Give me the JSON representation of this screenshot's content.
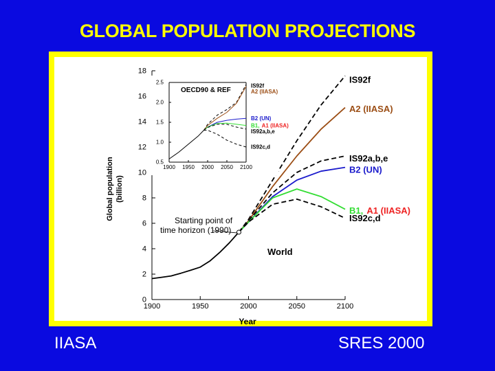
{
  "slide": {
    "title": "GLOBAL POPULATION PROJECTIONS",
    "footer_left": "IIASA",
    "footer_right": "SRES 2000"
  },
  "colors": {
    "background": "#0a0ae0",
    "frame": "#ffff00",
    "title": "#ffff00",
    "black": "#000000",
    "brown": "#9b4d14",
    "blue": "#1a1acc",
    "green": "#33dd33",
    "red": "#ee2222"
  },
  "chart_data": [
    {
      "type": "line",
      "title": "",
      "xlabel": "Year",
      "ylabel": "Global population (billion)",
      "xlim": [
        1900,
        2100
      ],
      "ylim": [
        0,
        18
      ],
      "xticks": [
        1900,
        1950,
        2000,
        2050,
        2100
      ],
      "yticks": [
        0,
        2,
        4,
        6,
        8,
        10,
        12,
        14,
        16,
        18
      ],
      "grid": false,
      "annotations": {
        "region": "World",
        "start_point": [
          "Starting point of",
          "time horizon (1990)"
        ]
      },
      "series": [
        {
          "name": "",
          "style": "solid",
          "color": "#000000",
          "x": [
            1900,
            1910,
            1920,
            1930,
            1940,
            1950,
            1960,
            1970,
            1980,
            1990
          ],
          "y": [
            1.65,
            1.75,
            1.86,
            2.07,
            2.3,
            2.55,
            3.03,
            3.7,
            4.45,
            5.3
          ]
        },
        {
          "name": "IS92f",
          "style": "dashed",
          "color": "#000000",
          "x": [
            1990,
            2000,
            2025,
            2050,
            2075,
            2100
          ],
          "y": [
            5.3,
            6.3,
            9.4,
            12.5,
            15.3,
            17.6
          ]
        },
        {
          "name": "A2 (IIASA)",
          "style": "solid",
          "color": "#9b4d14",
          "x": [
            1990,
            2000,
            2025,
            2050,
            2075,
            2100
          ],
          "y": [
            5.3,
            6.2,
            8.9,
            11.3,
            13.4,
            15.1
          ]
        },
        {
          "name": "IS92a,b,e",
          "style": "dashed",
          "color": "#000000",
          "x": [
            1990,
            2000,
            2025,
            2050,
            2075,
            2100
          ],
          "y": [
            5.3,
            6.2,
            8.4,
            10.0,
            10.9,
            11.3
          ]
        },
        {
          "name": "B2 (UN)",
          "style": "solid",
          "color": "#1a1acc",
          "x": [
            1990,
            2000,
            2025,
            2050,
            2075,
            2100
          ],
          "y": [
            5.3,
            6.1,
            8.1,
            9.4,
            10.1,
            10.4
          ]
        },
        {
          "name": "B1, A1 (IIASA)",
          "style": "solid",
          "color": "#33dd33",
          "x": [
            1990,
            2000,
            2025,
            2050,
            2075,
            2100
          ],
          "y": [
            5.3,
            6.1,
            8.0,
            8.7,
            8.1,
            7.1
          ]
        },
        {
          "name": "IS92c,d",
          "style": "dashed",
          "color": "#000000",
          "x": [
            1990,
            2000,
            2025,
            2050,
            2075,
            2100
          ],
          "y": [
            5.3,
            6.1,
            7.5,
            7.9,
            7.3,
            6.4
          ]
        }
      ],
      "labels": [
        {
          "text": "IS92f",
          "color": "#000000",
          "y": 17.3
        },
        {
          "text": "A2 (IIASA)",
          "color": "#9b4d14",
          "y": 15.0
        },
        {
          "text": "IS92a,b,e",
          "color": "#000000",
          "y": 11.1
        },
        {
          "text": "B2 (UN)",
          "color": "#1a1acc",
          "y": 10.2
        },
        {
          "text": "B1,",
          "color": "#33dd33",
          "y": 7.0,
          "second": {
            "text": "A1 (IIASA)",
            "color": "#ee2222"
          }
        },
        {
          "text": "IS92c,d",
          "color": "#000000",
          "y": 6.4
        }
      ]
    },
    {
      "type": "line",
      "title": "OECD90 & REF",
      "xlabel": "",
      "ylabel": "",
      "xlim": [
        1900,
        2100
      ],
      "ylim": [
        0.5,
        2.5
      ],
      "xticks": [
        1900,
        1950,
        2000,
        2050,
        2100
      ],
      "yticks": [
        0.5,
        1.0,
        1.5,
        2.0,
        2.5
      ],
      "grid": false,
      "series": [
        {
          "name": "",
          "style": "solid",
          "color": "#000000",
          "x": [
            1900,
            1925,
            1950,
            1975,
            1990
          ],
          "y": [
            0.58,
            0.75,
            0.95,
            1.15,
            1.3
          ]
        },
        {
          "name": "IS92f",
          "style": "dashed",
          "color": "#000000",
          "x": [
            1990,
            2000,
            2025,
            2050,
            2075,
            2100
          ],
          "y": [
            1.3,
            1.45,
            1.68,
            1.82,
            2.0,
            2.45
          ]
        },
        {
          "name": "A2 (IIASA)",
          "style": "solid",
          "color": "#9b4d14",
          "x": [
            1990,
            2000,
            2025,
            2050,
            2075,
            2100
          ],
          "y": [
            1.3,
            1.42,
            1.6,
            1.75,
            1.98,
            2.4
          ]
        },
        {
          "name": "B2 (UN)",
          "style": "solid",
          "color": "#1a1acc",
          "x": [
            1990,
            2000,
            2025,
            2050,
            2075,
            2100
          ],
          "y": [
            1.3,
            1.38,
            1.5,
            1.55,
            1.58,
            1.6
          ]
        },
        {
          "name": "B1, A1 (IIASA)",
          "style": "solid",
          "color": "#33dd33",
          "x": [
            1990,
            2000,
            2025,
            2050,
            2075,
            2100
          ],
          "y": [
            1.3,
            1.38,
            1.47,
            1.48,
            1.45,
            1.42
          ]
        },
        {
          "name": "IS92a,b,e",
          "style": "dashed",
          "color": "#000000",
          "x": [
            1990,
            2000,
            2025,
            2050,
            2075,
            2100
          ],
          "y": [
            1.3,
            1.37,
            1.45,
            1.45,
            1.38,
            1.33
          ]
        },
        {
          "name": "IS92c,d",
          "style": "dashed",
          "color": "#000000",
          "x": [
            1990,
            2000,
            2025,
            2050,
            2075,
            2100
          ],
          "y": [
            1.3,
            1.3,
            1.2,
            1.05,
            0.95,
            0.88
          ]
        }
      ],
      "labels": [
        {
          "text": "IS92f",
          "color": "#000000",
          "y": 2.42
        },
        {
          "text": "A2 (IIASA)",
          "color": "#9b4d14",
          "y": 2.27
        },
        {
          "text": "B2 (UN)",
          "color": "#1a1acc",
          "y": 1.6
        },
        {
          "text": "B1,",
          "color": "#33dd33",
          "y": 1.42,
          "second": {
            "text": "A1 (IIASA)",
            "color": "#ee2222"
          }
        },
        {
          "text": "IS92a,b,e",
          "color": "#000000",
          "y": 1.27
        },
        {
          "text": "IS92c,d",
          "color": "#000000",
          "y": 0.88
        }
      ]
    }
  ]
}
